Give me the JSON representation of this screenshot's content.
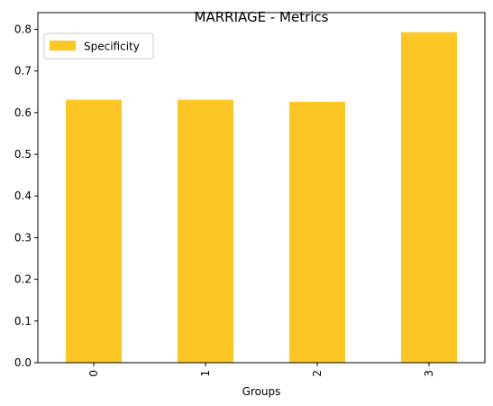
{
  "chart_data": {
    "type": "bar",
    "title": "MARRIAGE - Metrics",
    "xlabel": "Groups",
    "ylabel": "",
    "categories": [
      "0",
      "1",
      "2",
      "3"
    ],
    "series": [
      {
        "name": "Specificity",
        "values": [
          0.631,
          0.631,
          0.626,
          0.793
        ],
        "color": "#fcc624"
      }
    ],
    "ylim": [
      0,
      0.84
    ],
    "yticks": [
      0.0,
      0.1,
      0.2,
      0.3,
      0.4,
      0.5,
      0.6,
      0.7,
      0.8
    ],
    "ytick_labels": [
      "0.0",
      "0.1",
      "0.2",
      "0.3",
      "0.4",
      "0.5",
      "0.6",
      "0.7",
      "0.8"
    ],
    "xtick_rotation": 90,
    "grid": false,
    "legend": {
      "position": "top-left"
    }
  }
}
